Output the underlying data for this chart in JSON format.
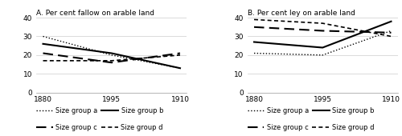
{
  "panel_A": {
    "title": "A. Per cent fallow on arable land",
    "series": {
      "Size group a": [
        30,
        20,
        13
      ],
      "Size group b": [
        26,
        21,
        13
      ],
      "Size group c": [
        21,
        16,
        21
      ],
      "Size group d": [
        17,
        17,
        20
      ]
    }
  },
  "panel_B": {
    "title": "B. Per cent ley on arable land",
    "series": {
      "Size group a": [
        21,
        20,
        33
      ],
      "Size group b": [
        27,
        24,
        38
      ],
      "Size group c": [
        35,
        33,
        32
      ],
      "Size group d": [
        39,
        37,
        30
      ]
    }
  },
  "xtick_labels": [
    "1880",
    "1995",
    "1910"
  ],
  "ylim": [
    0,
    40
  ],
  "yticks": [
    0,
    10,
    20,
    30,
    40
  ],
  "legend_entries": [
    "Size group a",
    "Size group b",
    "Size group c",
    "Size group d"
  ],
  "fig_width": 5.0,
  "fig_height": 1.7,
  "dpi": 100
}
